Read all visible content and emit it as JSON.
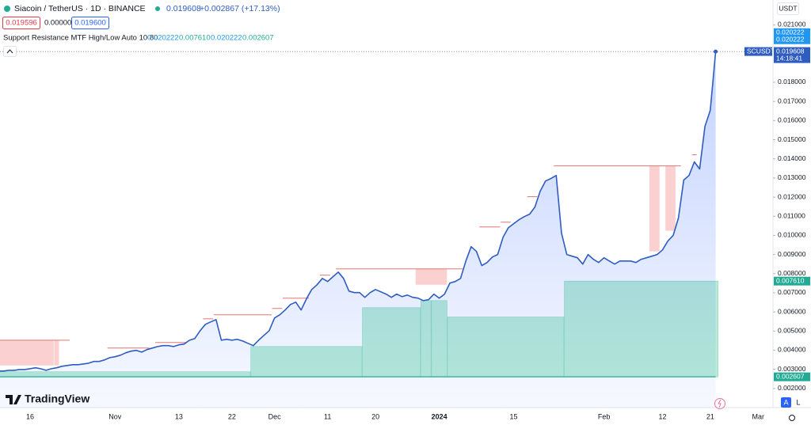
{
  "header": {
    "symbol": "Siacoin / TetherUS · 1D · BINANCE",
    "change": "+0.002867 (+17.13%)",
    "bid": "0.019596",
    "spread": "0.000004",
    "ask": "0.019600",
    "currency": "USDT",
    "countdown": "14:18:41",
    "brand": "TradingView",
    "auto": "A",
    "log": "L"
  },
  "chart_data": {
    "type": "area",
    "categories": [
      null,
      null,
      null,
      null,
      null,
      null,
      "16",
      null,
      null,
      null,
      null,
      null,
      null,
      null,
      null,
      null,
      null,
      null,
      null,
      null,
      null,
      null,
      "Nov",
      null,
      null,
      null,
      null,
      null,
      null,
      null,
      null,
      null,
      null,
      null,
      "13",
      null,
      null,
      null,
      null,
      null,
      null,
      null,
      null,
      null,
      "22",
      null,
      null,
      null,
      null,
      null,
      null,
      null,
      "Dec",
      null,
      null,
      null,
      null,
      null,
      null,
      null,
      null,
      null,
      "11",
      null,
      null,
      null,
      null,
      null,
      null,
      null,
      null,
      "20",
      null,
      null,
      null,
      null,
      null,
      null,
      null,
      null,
      null,
      null,
      null,
      "2024",
      null,
      null,
      null,
      null,
      null,
      null,
      null,
      null,
      null,
      null,
      null,
      null,
      null,
      "15",
      null,
      null,
      null,
      null,
      null,
      null,
      null,
      null,
      null,
      null,
      null,
      null,
      null,
      null,
      null,
      null,
      "Feb",
      null,
      null,
      null,
      null,
      null,
      null,
      null,
      null,
      null,
      null,
      "12",
      null,
      null,
      null,
      null,
      null,
      null,
      null,
      null,
      "21",
      null,
      null,
      null,
      null,
      null,
      null,
      null,
      null,
      "Mar"
    ],
    "series": [
      {
        "name": "SCUSDT",
        "color": "#2f5cc0",
        "values": [
          0.00291,
          0.00291,
          0.00295,
          0.00295,
          0.00299,
          0.00299,
          0.00303,
          0.00308,
          0.00303,
          0.00295,
          0.00303,
          0.00308,
          0.00316,
          0.0032,
          0.00324,
          0.00324,
          0.00328,
          0.00332,
          0.00341,
          0.00341,
          0.00349,
          0.00361,
          0.00366,
          0.00374,
          0.00386,
          0.00395,
          0.00399,
          0.0039,
          0.00403,
          0.00411,
          0.00419,
          0.00424,
          0.00424,
          0.00419,
          0.00428,
          0.00432,
          0.00452,
          0.00461,
          0.00502,
          0.00535,
          0.00548,
          0.0056,
          0.00452,
          0.00457,
          0.00452,
          0.00457,
          0.00448,
          0.00436,
          0.00424,
          0.00452,
          0.00477,
          0.00502,
          0.00568,
          0.00585,
          0.0061,
          0.00639,
          0.00651,
          0.0061,
          0.00668,
          0.00717,
          0.00742,
          0.00775,
          0.00759,
          0.00784,
          0.00808,
          0.00775,
          0.00709,
          0.00701,
          0.00701,
          0.00676,
          0.00701,
          0.00717,
          0.00705,
          0.00693,
          0.00676,
          0.00693,
          0.0068,
          0.00688,
          0.00676,
          0.00672,
          0.00659,
          0.00664,
          0.00693,
          0.00672,
          0.00693,
          0.00751,
          0.00759,
          0.00775,
          0.00866,
          0.00941,
          0.00916,
          0.00842,
          0.00858,
          0.00887,
          0.009,
          0.00991,
          0.0104,
          0.01061,
          0.01082,
          0.01098,
          0.01111,
          0.01148,
          0.01231,
          0.01284,
          0.01297,
          0.01313,
          0.01011,
          0.009,
          0.00891,
          0.00883,
          0.0085,
          0.009,
          0.00875,
          0.00858,
          0.00883,
          0.00866,
          0.0085,
          0.00866,
          0.00866,
          0.00866,
          0.00858,
          0.00875,
          0.00883,
          0.00891,
          0.009,
          0.00924,
          0.0097,
          0.00999,
          0.0109,
          0.01289,
          0.01313,
          0.01384,
          0.01347,
          0.0157,
          0.01653,
          0.019608,
          null,
          null,
          null,
          null,
          null,
          null,
          null,
          null
        ]
      }
    ],
    "ylim": [
      0.001,
      0.0223
    ],
    "yticks": [
      {
        "value": 0.002,
        "label": "0.002000"
      },
      {
        "value": 0.003,
        "label": "0.003000"
      },
      {
        "value": 0.004,
        "label": "0.004000"
      },
      {
        "value": 0.005,
        "label": "0.005000"
      },
      {
        "value": 0.006,
        "label": "0.006000"
      },
      {
        "value": 0.007,
        "label": "0.007000"
      },
      {
        "value": 0.008,
        "label": "0.008000"
      },
      {
        "value": 0.009,
        "label": "0.009000"
      },
      {
        "value": 0.01,
        "label": "0.010000"
      },
      {
        "value": 0.011,
        "label": "0.011000"
      },
      {
        "value": 0.012,
        "label": "0.012000"
      },
      {
        "value": 0.013,
        "label": "0.013000"
      },
      {
        "value": 0.014,
        "label": "0.014000"
      },
      {
        "value": 0.015,
        "label": "0.015000"
      },
      {
        "value": 0.016,
        "label": "0.016000"
      },
      {
        "value": 0.017,
        "label": "0.017000"
      },
      {
        "value": 0.018,
        "label": "0.018000"
      },
      {
        "value": 0.021,
        "label": "0.021000"
      }
    ],
    "indicator": {
      "name": "Support Resistance MTF High/Low Auto 10 80",
      "values": [
        0.020222,
        0.00761,
        0.020222,
        0.002607
      ],
      "value_labels": [
        "0.020222",
        "0.007610",
        "0.020222",
        "0.002607"
      ],
      "colors": [
        "#2196f3",
        "#22ab94",
        "#2196f3",
        "#22ab94"
      ]
    },
    "support_zones": [
      {
        "start": 0,
        "end": 47,
        "top": 0.00287,
        "bottom": 0.002607
      },
      {
        "start": 48,
        "end": 68,
        "top": 0.00419,
        "bottom": 0.002607
      },
      {
        "start": 69,
        "end": 79,
        "top": 0.00622,
        "bottom": 0.002607
      },
      {
        "start": 80,
        "end": 81,
        "top": 0.00659,
        "bottom": 0.002607
      },
      {
        "start": 82,
        "end": 84,
        "top": 0.00659,
        "bottom": 0.002607
      },
      {
        "start": 85,
        "end": 106,
        "top": 0.00573,
        "bottom": 0.002607
      },
      {
        "start": 107,
        "end": 135,
        "top": 0.00761,
        "bottom": 0.002607
      }
    ],
    "resistance_zones": [
      {
        "start": 0,
        "end": 10,
        "top": 0.00452,
        "bottom": 0.0032
      },
      {
        "start": 11,
        "end": 11,
        "top": 0.00452,
        "bottom": 0.0032
      },
      {
        "start": 79,
        "end": 84,
        "top": 0.00825,
        "bottom": 0.00742
      },
      {
        "start": 123,
        "end": 124,
        "top": 0.01363,
        "bottom": 0.00916
      },
      {
        "start": 126,
        "end": 127,
        "top": 0.01363,
        "bottom": 0.01024
      }
    ],
    "resistance_lines": [
      {
        "start": 0,
        "end": 13,
        "value": 0.00452
      },
      {
        "start": 21,
        "end": 28,
        "value": 0.00411
      },
      {
        "start": 30,
        "end": 35,
        "value": 0.0044
      },
      {
        "start": 39,
        "end": 40,
        "value": 0.00564
      },
      {
        "start": 41,
        "end": 51,
        "value": 0.00585
      },
      {
        "start": 52,
        "end": 53,
        "value": 0.00618
      },
      {
        "start": 54,
        "end": 58,
        "value": 0.00672
      },
      {
        "start": 61,
        "end": 62,
        "value": 0.00792
      },
      {
        "start": 64,
        "end": 87,
        "value": 0.00825
      },
      {
        "start": 91,
        "end": 94,
        "value": 0.01044
      },
      {
        "start": 95,
        "end": 96,
        "value": 0.01069
      },
      {
        "start": 100,
        "end": 101,
        "value": 0.01202
      },
      {
        "start": 105,
        "end": 128,
        "value": 0.01363
      },
      {
        "start": 131,
        "end": 131,
        "value": 0.01421
      }
    ]
  }
}
